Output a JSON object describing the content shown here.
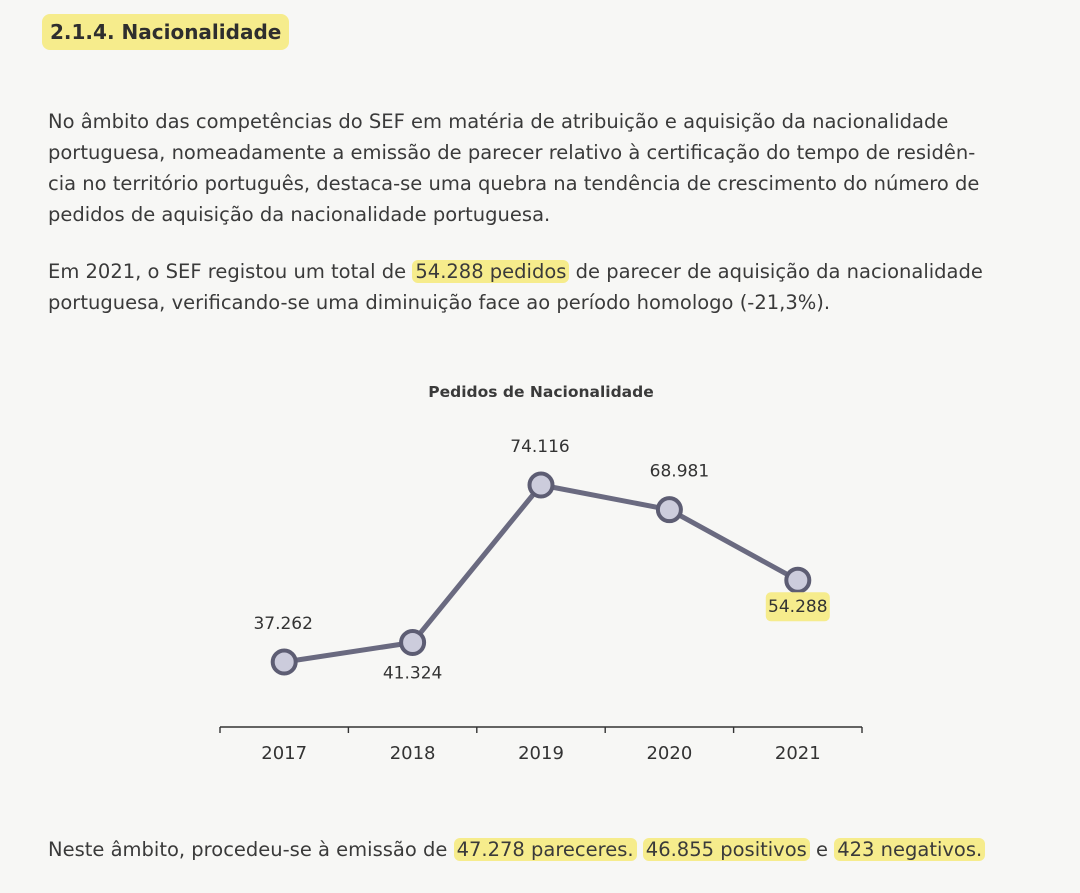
{
  "heading": "2.1.4. Nacionalidade",
  "p1": {
    "lines": [
      "No âmbito das competências do SEF em matéria de atribuição e aquisição da nacionalidade",
      "portuguesa, nomeadamente a emissão de parecer relativo à certificação do tempo de residên-",
      "cia no território português, destaca-se uma quebra na tendência de crescimento do número de",
      "pedidos de aquisição da nacionalidade portuguesa."
    ]
  },
  "p2": {
    "l1_a": "Em 2021, o SEF registou um total de ",
    "l1_hl": "54.288 pedidos",
    "l1_b": " de parecer de aquisição da nacionalidade",
    "l2": "portuguesa, verificando-se uma diminuição face ao período homologo (-21,3%)."
  },
  "p3": {
    "a": "Neste âmbito, procedeu-se à emissão de ",
    "hl1": "47.278 pareceres.",
    "b": " ",
    "hl2": "46.855 positivos",
    "c": " e ",
    "hl3": "423 negativos."
  },
  "chart_data": {
    "type": "line",
    "title": "Pedidos de Nacionalidade",
    "categories": [
      "2017",
      "2018",
      "2019",
      "2020",
      "2021"
    ],
    "values": [
      37262,
      41324,
      74116,
      68981,
      54288
    ],
    "labels": [
      "37.262",
      "41.324",
      "74.116",
      "68.981",
      "54.288"
    ],
    "highlighted_label_index": 4,
    "ylim": [
      30000,
      80000
    ],
    "grid": false,
    "legend": "none",
    "colors": {
      "line": "#6a6a80",
      "marker_fill": "#ccccdc",
      "marker_stroke": "#5d5d73",
      "highlight": "#f6ec8c"
    }
  }
}
